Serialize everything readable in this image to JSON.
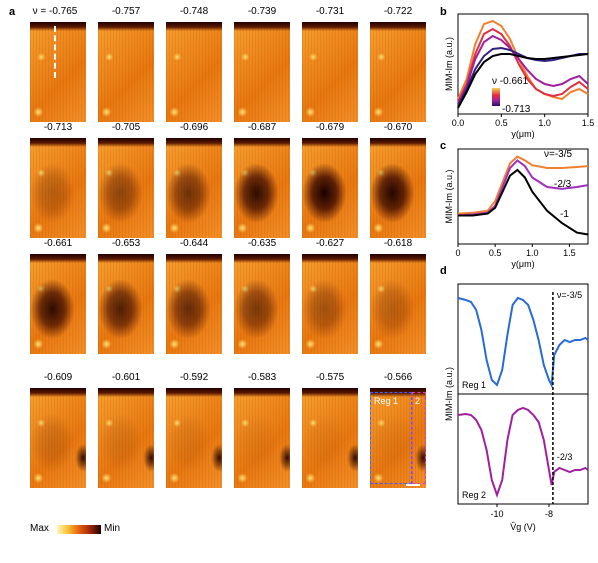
{
  "panels": {
    "a": "a",
    "b": "b",
    "c": "c",
    "d": "d"
  },
  "maps": {
    "nu_prefix": "ν = ",
    "labels": [
      "-0.765",
      "-0.757",
      "-0.748",
      "-0.739",
      "-0.731",
      "-0.722",
      "-0.713",
      "-0.705",
      "-0.696",
      "-0.687",
      "-0.679",
      "-0.670",
      "-0.661",
      "-0.653",
      "-0.644",
      "-0.635",
      "-0.627",
      "-0.618",
      "-0.609",
      "-0.601",
      "-0.592",
      "-0.583",
      "-0.575",
      "-0.566"
    ],
    "dark_blob_strength": [
      0,
      0,
      0,
      0,
      0,
      0,
      0.25,
      0.45,
      0.6,
      0.9,
      1.0,
      0.95,
      0.9,
      0.75,
      0.65,
      0.55,
      0.35,
      0.25,
      0.15,
      0.1,
      0.08,
      0.05,
      0.05,
      0.05
    ],
    "region_labels": {
      "reg1": "Reg 1",
      "reg2": "2"
    },
    "colorbar": {
      "min_label": "Min",
      "max_label": "Max"
    }
  },
  "chart_data": [
    {
      "id": "b",
      "type": "line",
      "xlabel": "y(μm)",
      "ylabel": "MIM-Im (a.u.)",
      "xlim": [
        0,
        1.5
      ],
      "xticks": [
        "0.0",
        "0.5",
        "1.0",
        "1.5"
      ],
      "legend": {
        "top": "ν -0.661",
        "bottom": "-0.713"
      },
      "series": [
        {
          "color": "#f08030",
          "x": [
            0,
            0.1,
            0.2,
            0.3,
            0.4,
            0.5,
            0.6,
            0.7,
            0.8,
            0.9,
            1.0,
            1.1,
            1.2,
            1.3,
            1.4,
            1.5
          ],
          "y": [
            0.15,
            0.35,
            0.7,
            0.9,
            0.93,
            0.88,
            0.75,
            0.55,
            0.38,
            0.25,
            0.2,
            0.17,
            0.15,
            0.22,
            0.25,
            0.2
          ]
        },
        {
          "color": "#e03040",
          "x": [
            0,
            0.1,
            0.2,
            0.3,
            0.4,
            0.5,
            0.6,
            0.7,
            0.8,
            0.9,
            1.0,
            1.1,
            1.2,
            1.3,
            1.4,
            1.5
          ],
          "y": [
            0.12,
            0.3,
            0.6,
            0.8,
            0.85,
            0.8,
            0.68,
            0.5,
            0.35,
            0.25,
            0.2,
            0.18,
            0.2,
            0.27,
            0.32,
            0.25
          ]
        },
        {
          "color": "#a020a0",
          "x": [
            0,
            0.1,
            0.2,
            0.3,
            0.4,
            0.5,
            0.6,
            0.7,
            0.8,
            0.9,
            1.0,
            1.1,
            1.2,
            1.3,
            1.4,
            1.5
          ],
          "y": [
            0.1,
            0.28,
            0.55,
            0.72,
            0.78,
            0.74,
            0.66,
            0.55,
            0.44,
            0.35,
            0.3,
            0.28,
            0.3,
            0.35,
            0.38,
            0.3
          ]
        },
        {
          "color": "#302080",
          "x": [
            0,
            0.1,
            0.2,
            0.3,
            0.4,
            0.5,
            0.6,
            0.7,
            0.8,
            0.9,
            1.0,
            1.1,
            1.2,
            1.3,
            1.4,
            1.5
          ],
          "y": [
            0.08,
            0.25,
            0.45,
            0.58,
            0.65,
            0.66,
            0.64,
            0.6,
            0.56,
            0.54,
            0.53,
            0.54,
            0.56,
            0.58,
            0.6,
            0.6
          ]
        },
        {
          "color": "#000000",
          "x": [
            0,
            0.1,
            0.2,
            0.3,
            0.4,
            0.5,
            0.6,
            0.7,
            0.8,
            0.9,
            1.0,
            1.1,
            1.2,
            1.3,
            1.4,
            1.5
          ],
          "y": [
            0.06,
            0.22,
            0.4,
            0.52,
            0.58,
            0.6,
            0.6,
            0.58,
            0.56,
            0.55,
            0.55,
            0.56,
            0.57,
            0.58,
            0.59,
            0.6
          ]
        }
      ]
    },
    {
      "id": "c",
      "type": "line",
      "xlabel": "y(μm)",
      "ylabel": "MIM-Im (a.u.)",
      "xlim": [
        0,
        1.75
      ],
      "xticks": [
        "0",
        "0.5",
        "1.0",
        "1.5"
      ],
      "series": [
        {
          "name": "ν=-3/5",
          "color": "#f08030",
          "x": [
            0,
            0.2,
            0.4,
            0.5,
            0.6,
            0.7,
            0.8,
            0.9,
            1.0,
            1.2,
            1.4,
            1.6,
            1.75
          ],
          "y": [
            0.32,
            0.33,
            0.35,
            0.45,
            0.65,
            0.85,
            0.92,
            0.88,
            0.83,
            0.8,
            0.8,
            0.81,
            0.82
          ]
        },
        {
          "name": "-2/3",
          "color": "#a030c0",
          "x": [
            0,
            0.2,
            0.4,
            0.5,
            0.6,
            0.7,
            0.8,
            0.9,
            1.0,
            1.2,
            1.4,
            1.6,
            1.75
          ],
          "y": [
            0.3,
            0.31,
            0.33,
            0.4,
            0.6,
            0.8,
            0.88,
            0.82,
            0.7,
            0.6,
            0.58,
            0.6,
            0.62
          ]
        },
        {
          "name": "-1",
          "color": "#000000",
          "x": [
            0,
            0.2,
            0.4,
            0.5,
            0.6,
            0.7,
            0.8,
            0.9,
            1.0,
            1.2,
            1.4,
            1.6,
            1.75
          ],
          "y": [
            0.3,
            0.3,
            0.32,
            0.38,
            0.55,
            0.72,
            0.78,
            0.7,
            0.55,
            0.35,
            0.22,
            0.12,
            0.1
          ]
        }
      ]
    },
    {
      "id": "d",
      "type": "line",
      "xlabel": "V̂g (V)",
      "ylabel": "MIM-Im (a.u.)",
      "xlim": [
        -11.5,
        -6.5
      ],
      "xticks": [
        "-10",
        "-8"
      ],
      "vline_label_top": "ν=-3/5",
      "vline_label_bottom": "-2/3",
      "series": [
        {
          "name": "Reg 1",
          "color": "#2a6ad8",
          "x": [
            -11.5,
            -11.2,
            -11.0,
            -10.8,
            -10.6,
            -10.4,
            -10.2,
            -10.0,
            -9.8,
            -9.6,
            -9.4,
            -9.2,
            -9.0,
            -8.8,
            -8.6,
            -8.4,
            -8.2,
            -8.0,
            -7.9,
            -7.8,
            -7.6,
            -7.4,
            -7.2,
            -7.0,
            -6.8,
            -6.6,
            -6.5
          ],
          "y": [
            0.92,
            0.9,
            0.88,
            0.8,
            0.6,
            0.3,
            0.1,
            0.05,
            0.2,
            0.55,
            0.85,
            0.92,
            0.9,
            0.85,
            0.7,
            0.5,
            0.25,
            0.1,
            0.05,
            0.35,
            0.45,
            0.5,
            0.48,
            0.5,
            0.5,
            0.52,
            0.5
          ]
        },
        {
          "name": "Reg 2",
          "color": "#a020a0",
          "x": [
            -11.5,
            -11.2,
            -11.0,
            -10.8,
            -10.6,
            -10.4,
            -10.2,
            -10.0,
            -9.8,
            -9.6,
            -9.4,
            -9.2,
            -9.0,
            -8.8,
            -8.6,
            -8.4,
            -8.2,
            -8.0,
            -7.9,
            -7.8,
            -7.6,
            -7.4,
            -7.2,
            -7.0,
            -6.8,
            -6.6,
            -6.5
          ],
          "y": [
            0.85,
            0.86,
            0.85,
            0.8,
            0.7,
            0.5,
            0.2,
            0.05,
            0.2,
            0.6,
            0.85,
            0.9,
            0.92,
            0.9,
            0.85,
            0.78,
            0.6,
            0.3,
            0.15,
            0.28,
            0.32,
            0.3,
            0.28,
            0.3,
            0.3,
            0.32,
            0.3
          ]
        }
      ]
    }
  ]
}
